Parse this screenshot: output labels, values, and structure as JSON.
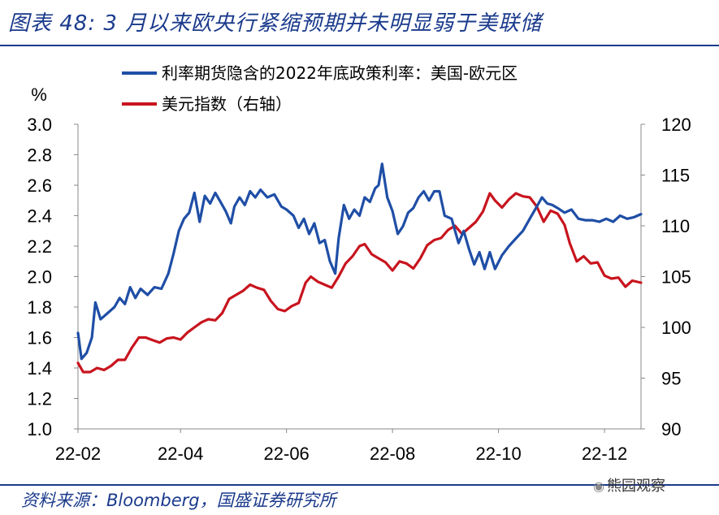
{
  "title": "图表 48: 3 月以来欧央行紧缩预期并未明显弱于美联储",
  "source": "资料来源：Bloomberg，国盛证券研究所",
  "watermark": "熊园观察",
  "chart_data": {
    "type": "line",
    "left_axis_unit": "%",
    "ylim_left": [
      1.0,
      3.0
    ],
    "yticks_left": [
      "1.0",
      "1.2",
      "1.4",
      "1.6",
      "1.8",
      "2.0",
      "2.2",
      "2.4",
      "2.6",
      "2.8",
      "3.0"
    ],
    "ylim_right": [
      90,
      120
    ],
    "yticks_right": [
      "90",
      "95",
      "100",
      "105",
      "110",
      "115",
      "120"
    ],
    "x_start": "2022-02-01",
    "x_end": "2022-12-22",
    "xticks": [
      {
        "label": "22-02",
        "date": "2022-02-01"
      },
      {
        "label": "22-04",
        "date": "2022-04-01"
      },
      {
        "label": "22-06",
        "date": "2022-06-01"
      },
      {
        "label": "22-08",
        "date": "2022-08-01"
      },
      {
        "label": "22-10",
        "date": "2022-10-01"
      },
      {
        "label": "22-12",
        "date": "2022-12-01"
      }
    ],
    "series": [
      {
        "name": "利率期货隐含的2022年底政策利率：美国-欧元区",
        "axis": "left",
        "color": "#1f4ea6",
        "points": [
          [
            "2022-02-01",
            1.63
          ],
          [
            "2022-02-03",
            1.46
          ],
          [
            "2022-02-06",
            1.5
          ],
          [
            "2022-02-09",
            1.6
          ],
          [
            "2022-02-11",
            1.83
          ],
          [
            "2022-02-14",
            1.72
          ],
          [
            "2022-02-18",
            1.76
          ],
          [
            "2022-02-22",
            1.8
          ],
          [
            "2022-02-25",
            1.86
          ],
          [
            "2022-02-28",
            1.82
          ],
          [
            "2022-03-03",
            1.93
          ],
          [
            "2022-03-06",
            1.86
          ],
          [
            "2022-03-09",
            1.92
          ],
          [
            "2022-03-13",
            1.88
          ],
          [
            "2022-03-17",
            1.93
          ],
          [
            "2022-03-21",
            1.92
          ],
          [
            "2022-03-25",
            2.02
          ],
          [
            "2022-03-28",
            2.15
          ],
          [
            "2022-03-31",
            2.3
          ],
          [
            "2022-04-03",
            2.38
          ],
          [
            "2022-04-06",
            2.42
          ],
          [
            "2022-04-09",
            2.55
          ],
          [
            "2022-04-12",
            2.36
          ],
          [
            "2022-04-15",
            2.53
          ],
          [
            "2022-04-18",
            2.48
          ],
          [
            "2022-04-21",
            2.55
          ],
          [
            "2022-04-24",
            2.49
          ],
          [
            "2022-04-27",
            2.43
          ],
          [
            "2022-04-30",
            2.35
          ],
          [
            "2022-05-02",
            2.46
          ],
          [
            "2022-05-05",
            2.52
          ],
          [
            "2022-05-08",
            2.47
          ],
          [
            "2022-05-11",
            2.56
          ],
          [
            "2022-05-14",
            2.52
          ],
          [
            "2022-05-17",
            2.57
          ],
          [
            "2022-05-21",
            2.52
          ],
          [
            "2022-05-25",
            2.54
          ],
          [
            "2022-05-29",
            2.46
          ],
          [
            "2022-06-01",
            2.44
          ],
          [
            "2022-06-05",
            2.4
          ],
          [
            "2022-06-08",
            2.32
          ],
          [
            "2022-06-11",
            2.38
          ],
          [
            "2022-06-14",
            2.28
          ],
          [
            "2022-06-17",
            2.35
          ],
          [
            "2022-06-20",
            2.22
          ],
          [
            "2022-06-23",
            2.24
          ],
          [
            "2022-06-26",
            2.1
          ],
          [
            "2022-06-29",
            2.02
          ],
          [
            "2022-07-01",
            2.25
          ],
          [
            "2022-07-04",
            2.47
          ],
          [
            "2022-07-07",
            2.38
          ],
          [
            "2022-07-10",
            2.44
          ],
          [
            "2022-07-13",
            2.4
          ],
          [
            "2022-07-16",
            2.52
          ],
          [
            "2022-07-19",
            2.49
          ],
          [
            "2022-07-22",
            2.58
          ],
          [
            "2022-07-24",
            2.6
          ],
          [
            "2022-07-26",
            2.74
          ],
          [
            "2022-07-29",
            2.52
          ],
          [
            "2022-08-01",
            2.43
          ],
          [
            "2022-08-04",
            2.28
          ],
          [
            "2022-08-07",
            2.33
          ],
          [
            "2022-08-10",
            2.42
          ],
          [
            "2022-08-13",
            2.45
          ],
          [
            "2022-08-16",
            2.52
          ],
          [
            "2022-08-19",
            2.56
          ],
          [
            "2022-08-22",
            2.5
          ],
          [
            "2022-08-25",
            2.56
          ],
          [
            "2022-08-28",
            2.56
          ],
          [
            "2022-08-31",
            2.4
          ],
          [
            "2022-09-04",
            2.38
          ],
          [
            "2022-09-08",
            2.22
          ],
          [
            "2022-09-11",
            2.3
          ],
          [
            "2022-09-14",
            2.18
          ],
          [
            "2022-09-17",
            2.08
          ],
          [
            "2022-09-20",
            2.16
          ],
          [
            "2022-09-23",
            2.05
          ],
          [
            "2022-09-26",
            2.16
          ],
          [
            "2022-09-29",
            2.05
          ],
          [
            "2022-10-03",
            2.14
          ],
          [
            "2022-10-07",
            2.2
          ],
          [
            "2022-10-11",
            2.25
          ],
          [
            "2022-10-15",
            2.3
          ],
          [
            "2022-10-19",
            2.38
          ],
          [
            "2022-10-23",
            2.46
          ],
          [
            "2022-10-26",
            2.52
          ],
          [
            "2022-10-29",
            2.48
          ],
          [
            "2022-11-01",
            2.47
          ],
          [
            "2022-11-04",
            2.45
          ],
          [
            "2022-11-08",
            2.42
          ],
          [
            "2022-11-12",
            2.44
          ],
          [
            "2022-11-16",
            2.38
          ],
          [
            "2022-11-20",
            2.37
          ],
          [
            "2022-11-24",
            2.37
          ],
          [
            "2022-11-28",
            2.36
          ],
          [
            "2022-12-02",
            2.38
          ],
          [
            "2022-12-06",
            2.36
          ],
          [
            "2022-12-10",
            2.4
          ],
          [
            "2022-12-14",
            2.38
          ],
          [
            "2022-12-18",
            2.39
          ],
          [
            "2022-12-22",
            2.41
          ]
        ]
      },
      {
        "name": "美元指数（右轴）",
        "axis": "right",
        "color": "#c8141e",
        "points": [
          [
            "2022-02-01",
            96.5
          ],
          [
            "2022-02-04",
            95.6
          ],
          [
            "2022-02-08",
            95.6
          ],
          [
            "2022-02-12",
            96.0
          ],
          [
            "2022-02-16",
            95.8
          ],
          [
            "2022-02-20",
            96.2
          ],
          [
            "2022-02-24",
            96.8
          ],
          [
            "2022-02-28",
            96.8
          ],
          [
            "2022-03-04",
            98.0
          ],
          [
            "2022-03-08",
            99.0
          ],
          [
            "2022-03-12",
            99.0
          ],
          [
            "2022-03-15",
            98.8
          ],
          [
            "2022-03-20",
            98.5
          ],
          [
            "2022-03-24",
            98.9
          ],
          [
            "2022-03-28",
            99.0
          ],
          [
            "2022-04-01",
            98.8
          ],
          [
            "2022-04-05",
            99.5
          ],
          [
            "2022-04-09",
            100.0
          ],
          [
            "2022-04-13",
            100.5
          ],
          [
            "2022-04-17",
            100.8
          ],
          [
            "2022-04-21",
            100.7
          ],
          [
            "2022-04-25",
            101.4
          ],
          [
            "2022-04-29",
            102.8
          ],
          [
            "2022-05-03",
            103.2
          ],
          [
            "2022-05-07",
            103.6
          ],
          [
            "2022-05-11",
            104.2
          ],
          [
            "2022-05-15",
            103.9
          ],
          [
            "2022-05-19",
            103.7
          ],
          [
            "2022-05-23",
            102.6
          ],
          [
            "2022-05-27",
            101.8
          ],
          [
            "2022-05-31",
            101.6
          ],
          [
            "2022-06-04",
            102.1
          ],
          [
            "2022-06-08",
            102.4
          ],
          [
            "2022-06-12",
            104.4
          ],
          [
            "2022-06-15",
            105.0
          ],
          [
            "2022-06-19",
            104.5
          ],
          [
            "2022-06-23",
            104.2
          ],
          [
            "2022-06-27",
            103.9
          ],
          [
            "2022-07-01",
            105.0
          ],
          [
            "2022-07-05",
            106.3
          ],
          [
            "2022-07-09",
            107.0
          ],
          [
            "2022-07-13",
            108.0
          ],
          [
            "2022-07-16",
            108.2
          ],
          [
            "2022-07-20",
            107.2
          ],
          [
            "2022-07-24",
            106.8
          ],
          [
            "2022-07-28",
            106.4
          ],
          [
            "2022-08-01",
            105.6
          ],
          [
            "2022-08-05",
            106.5
          ],
          [
            "2022-08-09",
            106.3
          ],
          [
            "2022-08-13",
            105.8
          ],
          [
            "2022-08-17",
            106.8
          ],
          [
            "2022-08-21",
            108.1
          ],
          [
            "2022-08-25",
            108.6
          ],
          [
            "2022-08-29",
            108.8
          ],
          [
            "2022-09-02",
            109.6
          ],
          [
            "2022-09-06",
            110.0
          ],
          [
            "2022-09-10",
            109.2
          ],
          [
            "2022-09-14",
            109.8
          ],
          [
            "2022-09-18",
            110.4
          ],
          [
            "2022-09-22",
            111.4
          ],
          [
            "2022-09-26",
            113.2
          ],
          [
            "2022-09-29",
            112.5
          ],
          [
            "2022-10-03",
            111.8
          ],
          [
            "2022-10-07",
            112.6
          ],
          [
            "2022-10-11",
            113.2
          ],
          [
            "2022-10-15",
            112.9
          ],
          [
            "2022-10-19",
            112.8
          ],
          [
            "2022-10-23",
            111.9
          ],
          [
            "2022-10-27",
            110.4
          ],
          [
            "2022-10-31",
            111.5
          ],
          [
            "2022-11-04",
            111.2
          ],
          [
            "2022-11-08",
            110.1
          ],
          [
            "2022-11-11",
            108.3
          ],
          [
            "2022-11-15",
            106.5
          ],
          [
            "2022-11-19",
            107.0
          ],
          [
            "2022-11-23",
            106.3
          ],
          [
            "2022-11-27",
            106.4
          ],
          [
            "2022-12-01",
            105.1
          ],
          [
            "2022-12-05",
            104.8
          ],
          [
            "2022-12-09",
            104.9
          ],
          [
            "2022-12-13",
            104.0
          ],
          [
            "2022-12-17",
            104.6
          ],
          [
            "2022-12-22",
            104.4
          ]
        ]
      }
    ]
  }
}
